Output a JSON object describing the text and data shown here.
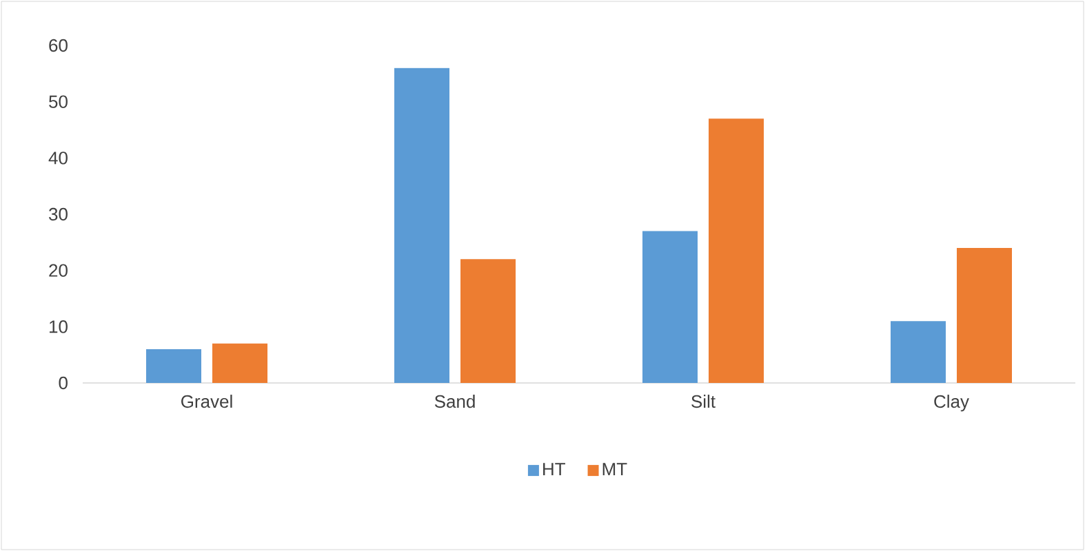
{
  "chart_data": {
    "type": "bar",
    "categories": [
      "Gravel",
      "Sand",
      "Silt",
      "Clay"
    ],
    "series": [
      {
        "name": "HT",
        "color": "#5b9bd5",
        "values": [
          6,
          56,
          27,
          11
        ]
      },
      {
        "name": "MT",
        "color": "#ed7d31",
        "values": [
          7,
          22,
          47,
          24
        ]
      }
    ],
    "ylim": [
      0,
      60
    ],
    "yticks": [
      0,
      10,
      20,
      30,
      40,
      50,
      60
    ],
    "grid": false,
    "legend": "bottom"
  }
}
